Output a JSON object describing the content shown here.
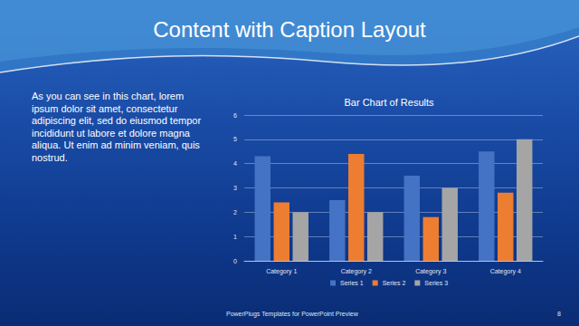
{
  "slide": {
    "title": "Content with Caption Layout",
    "caption": "As you can see in this chart, lorem ipsum dolor sit amet, consectetur adipiscing elit, sed do eiusmod tempor incididunt ut labore et dolore magna aliqua. Ut enim ad minim veniam, quis nostrud.",
    "footer": "PowerPlugs Templates for PowerPoint Preview",
    "page": 8
  },
  "chart_data": {
    "type": "bar",
    "title": "Bar Chart of Results",
    "categories": [
      "Category 1",
      "Category 2",
      "Category 3",
      "Category 4"
    ],
    "series": [
      {
        "name": "Series 1",
        "color": "#4472c4",
        "values": [
          4.3,
          2.5,
          3.5,
          4.5
        ]
      },
      {
        "name": "Series 2",
        "color": "#ed7d31",
        "values": [
          2.4,
          4.4,
          1.8,
          2.8
        ]
      },
      {
        "name": "Series 3",
        "color": "#a5a5a5",
        "values": [
          2,
          2,
          3,
          5
        ]
      }
    ],
    "ylim": [
      0,
      6
    ],
    "yticks": [
      0,
      1,
      2,
      3,
      4,
      5,
      6
    ],
    "grid": true,
    "legend": "bottom"
  }
}
